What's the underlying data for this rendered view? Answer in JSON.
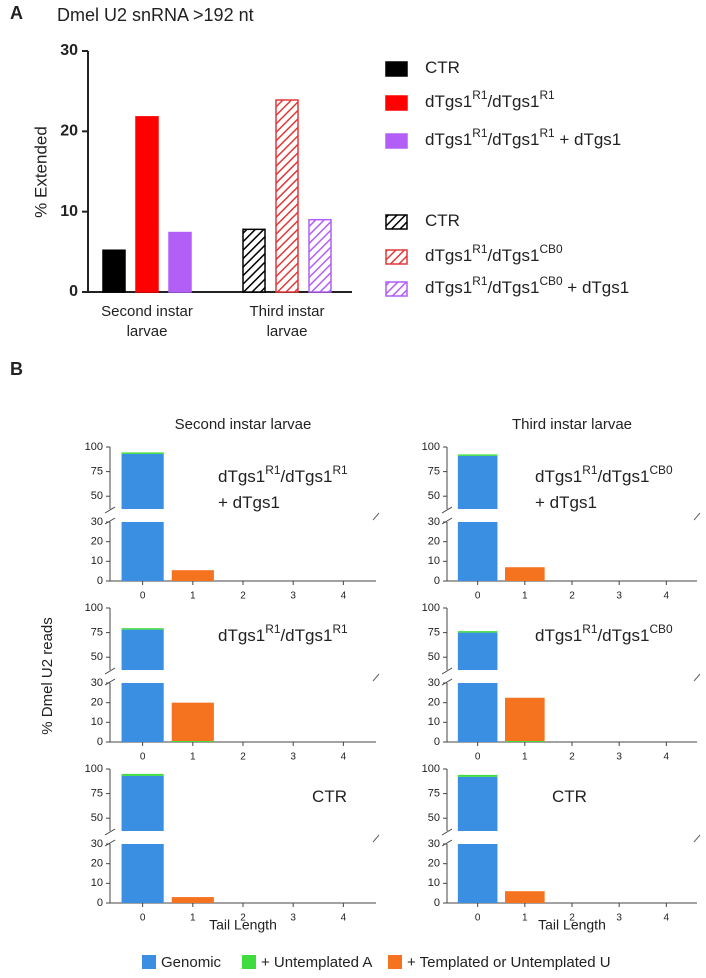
{
  "panel_labels": [
    "A",
    "B"
  ],
  "chart_data": [
    {
      "type": "bar",
      "title": "Dmel U2 snRNA >192 nt",
      "ylabel": "% Extended",
      "categories": [
        "Second instar larvae",
        "Third instar larvae"
      ],
      "ylim": [
        0,
        30
      ],
      "yticks": [
        0,
        10,
        20,
        30
      ],
      "series": [
        {
          "name": [
            "CTR"
          ],
          "color": "#000000",
          "hatch": false,
          "values": [
            5.2,
            null
          ]
        },
        {
          "name": [
            "dTgs1",
            "R1",
            "/dTgs1",
            "R1"
          ],
          "color": "#ff0000",
          "hatch": false,
          "values": [
            21.8,
            null
          ]
        },
        {
          "name": [
            "dTgs1",
            "R1",
            "/dTgs1",
            "R1",
            " + dTgs1"
          ],
          "color": "#b25ef7",
          "hatch": false,
          "values": [
            7.4,
            null
          ]
        },
        {
          "name": [
            "CTR"
          ],
          "color": "#000000",
          "hatch": true,
          "values": [
            null,
            7.8
          ]
        },
        {
          "name": [
            "dTgs1",
            "R1",
            "/dTgs1",
            "CB0"
          ],
          "color": "#e0393a",
          "hatch": true,
          "values": [
            null,
            23.9
          ]
        },
        {
          "name": [
            "dTgs1",
            "R1",
            "/dTgs1",
            "CB0",
            " + dTgs1"
          ],
          "color": "#b25ef7",
          "hatch": true,
          "values": [
            null,
            9.0
          ]
        }
      ]
    },
    {
      "type": "stacked",
      "ylabel": "% Dmel U2 reads",
      "xlabel": "Tail Length",
      "columns": [
        "Second instar larvae",
        "Third instar larvae"
      ],
      "categories": [
        0,
        1,
        2,
        3,
        4
      ],
      "ylim": [
        0,
        30
      ],
      "yticks": [
        0,
        10,
        20,
        30
      ],
      "ylim_break": [
        37,
        100
      ],
      "yticks_break": [
        50,
        75,
        100
      ],
      "series": [
        {
          "name": "Genomic",
          "color": "#3b8fe3"
        },
        {
          "name": "+ Untemplated A",
          "color": "#3fdc3f"
        },
        {
          "name": "+ Templated or Untemplated U",
          "color": "#f5731f"
        }
      ],
      "panels": [
        {
          "annotation": [
            [
              "dTgs1",
              "R1",
              "/dTgs1",
              "R1"
            ],
            [
              "+ dTgs1"
            ]
          ],
          "values": [
            [
              93,
              0,
              0,
              0,
              0
            ],
            [
              1.5,
              0,
              0,
              0,
              0
            ],
            [
              0,
              5.5,
              0,
              0,
              0
            ]
          ]
        },
        {
          "annotation": [
            [
              "dTgs1",
              "R1",
              "/dTgs1",
              "CB0"
            ],
            [
              "+ dTgs1"
            ]
          ],
          "values": [
            [
              91,
              0,
              0,
              0,
              0
            ],
            [
              1.5,
              0,
              0,
              0,
              0
            ],
            [
              0,
              7,
              0,
              0,
              0
            ]
          ]
        },
        {
          "annotation": [
            [
              "dTgs1",
              "R1",
              "/dTgs1",
              "R1"
            ]
          ],
          "values": [
            [
              78,
              0,
              0,
              0,
              0
            ],
            [
              1.5,
              0.5,
              0,
              0,
              0
            ],
            [
              0,
              19.5,
              0,
              0,
              0
            ]
          ]
        },
        {
          "annotation": [
            [
              "dTgs1",
              "R1",
              "/dTgs1",
              "CB0"
            ]
          ],
          "values": [
            [
              75,
              0,
              0,
              0,
              0
            ],
            [
              1.5,
              0.5,
              0,
              0,
              0
            ],
            [
              0,
              22,
              0,
              0,
              0
            ]
          ]
        },
        {
          "annotation": [
            [
              "CTR"
            ]
          ],
          "values": [
            [
              93,
              0,
              0,
              0,
              0
            ],
            [
              2,
              0,
              0,
              0,
              0
            ],
            [
              0,
              3,
              0,
              0,
              0
            ]
          ]
        },
        {
          "annotation": [
            [
              "CTR"
            ]
          ],
          "values": [
            [
              92,
              0,
              0,
              0,
              0
            ],
            [
              2,
              0,
              0,
              0,
              0
            ],
            [
              0,
              6,
              0,
              0,
              0
            ]
          ]
        }
      ]
    }
  ]
}
